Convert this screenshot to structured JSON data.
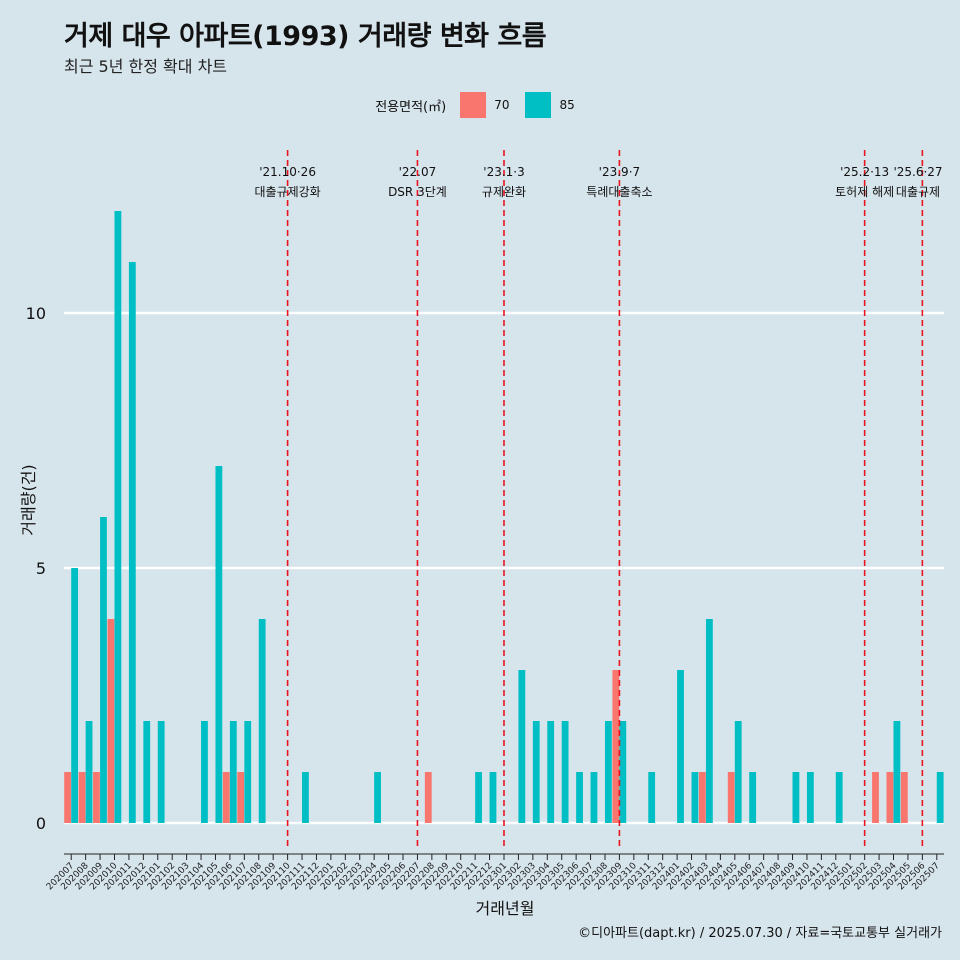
{
  "header": {
    "title": "거제 대우 아파트(1993) 거래량 변화 흐름",
    "subtitle": "최근 5년 한정 확대 차트"
  },
  "legend": {
    "title": "전용면적(㎡)",
    "items": [
      {
        "label": "70",
        "color": "#f8766d"
      },
      {
        "label": "85",
        "color": "#00bfc4"
      }
    ]
  },
  "caption": "©디아파트(dapt.kr) / 2025.07.30 / 자료=국토교통부 실거래가",
  "chart_data": {
    "type": "bar",
    "xlabel": "거래년월",
    "ylabel": "거래량(건)",
    "ylim": [
      -0.5,
      12.5
    ],
    "yticks": [
      0,
      5,
      10
    ],
    "grid": true,
    "legend_position": "top",
    "categories": [
      "202007",
      "202008",
      "202009",
      "202010",
      "202011",
      "202012",
      "202101",
      "202102",
      "202103",
      "202104",
      "202105",
      "202106",
      "202107",
      "202108",
      "202109",
      "202110",
      "202111",
      "202112",
      "202201",
      "202202",
      "202203",
      "202204",
      "202205",
      "202206",
      "202207",
      "202208",
      "202209",
      "202210",
      "202211",
      "202212",
      "202301",
      "202302",
      "202303",
      "202304",
      "202305",
      "202306",
      "202307",
      "202308",
      "202309",
      "202310",
      "202311",
      "202312",
      "202401",
      "202402",
      "202403",
      "202404",
      "202405",
      "202406",
      "202407",
      "202408",
      "202409",
      "202410",
      "202411",
      "202412",
      "202501",
      "202502",
      "202503",
      "202504",
      "202505",
      "202506",
      "202507"
    ],
    "series": [
      {
        "name": "70",
        "color": "#f8766d",
        "values": [
          1,
          1,
          1,
          4,
          0,
          0,
          0,
          0,
          0,
          0,
          0,
          1,
          1,
          0,
          0,
          0,
          0,
          0,
          0,
          0,
          0,
          0,
          0,
          0,
          0,
          1,
          0,
          0,
          0,
          0,
          0,
          0,
          0,
          0,
          0,
          0,
          0,
          0,
          3,
          0,
          0,
          0,
          0,
          0,
          1,
          0,
          1,
          0,
          0,
          0,
          0,
          0,
          0,
          0,
          0,
          0,
          1,
          1,
          1,
          0,
          0
        ]
      },
      {
        "name": "85",
        "color": "#00bfc4",
        "values": [
          5,
          2,
          6,
          12,
          11,
          2,
          2,
          0,
          0,
          2,
          7,
          2,
          2,
          4,
          0,
          0,
          1,
          0,
          0,
          0,
          0,
          1,
          0,
          0,
          0,
          0,
          0,
          0,
          1,
          1,
          0,
          3,
          2,
          2,
          2,
          1,
          1,
          2,
          2,
          0,
          1,
          0,
          3,
          1,
          4,
          0,
          2,
          1,
          0,
          0,
          1,
          1,
          0,
          1,
          0,
          0,
          0,
          2,
          0,
          0,
          1
        ]
      }
    ],
    "events": [
      {
        "date": "'21.10·26",
        "label": "대출규제강화",
        "x": "202110"
      },
      {
        "date": "'22.07",
        "label": "DSR 3단계",
        "x": "202207"
      },
      {
        "date": "'23.1·3",
        "label": "규제완화",
        "x": "202301"
      },
      {
        "date": "'23.9·7",
        "label": "특례대출축소",
        "x": "202309"
      },
      {
        "date": "'25.2·13",
        "label": "토허제 해제",
        "x": "202502"
      },
      {
        "date": "'25.6·27",
        "label": "대출규제",
        "x": "202506"
      }
    ]
  }
}
